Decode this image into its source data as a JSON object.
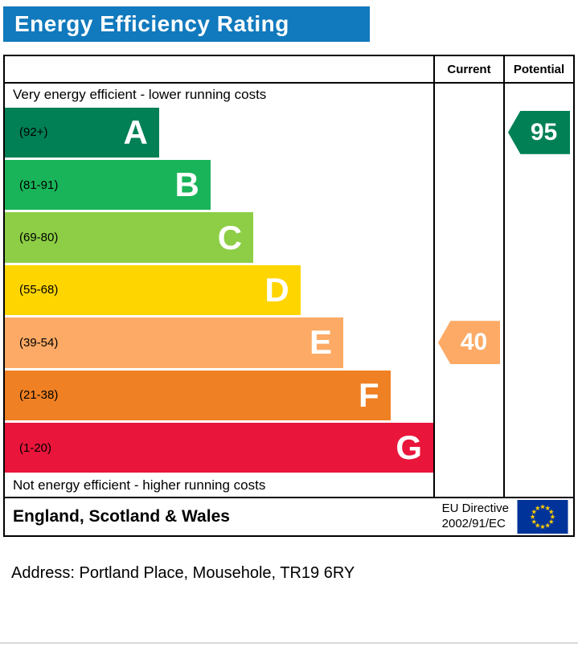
{
  "header": {
    "title": "Energy Efficiency Rating"
  },
  "colors": {
    "title_bg": "#1179bd",
    "border": "#000000",
    "flag_bg": "#003399",
    "flag_star": "#ffcc00"
  },
  "table": {
    "columns": {
      "current": "Current",
      "potential": "Potential"
    },
    "captions": {
      "top": "Very energy efficient - lower running costs",
      "bottom": "Not energy efficient - higher running costs"
    },
    "bands": [
      {
        "letter": "A",
        "range": "(92+)",
        "color": "#008054",
        "width_pct": 36
      },
      {
        "letter": "B",
        "range": "(81-91)",
        "color": "#19b459",
        "width_pct": 48
      },
      {
        "letter": "C",
        "range": "(69-80)",
        "color": "#8dce46",
        "width_pct": 58
      },
      {
        "letter": "D",
        "range": "(55-68)",
        "color": "#ffd500",
        "width_pct": 69
      },
      {
        "letter": "E",
        "range": "(39-54)",
        "color": "#fcaa65",
        "width_pct": 79
      },
      {
        "letter": "F",
        "range": "(21-38)",
        "color": "#ef8023",
        "width_pct": 90
      },
      {
        "letter": "G",
        "range": "(1-20)",
        "color": "#e9153b",
        "width_pct": 100
      }
    ],
    "current": {
      "value": "40",
      "band": "E",
      "band_row": 4,
      "color": "#fcaa65"
    },
    "potential": {
      "value": "95",
      "band": "A",
      "band_row": 0,
      "color": "#008054"
    }
  },
  "footer": {
    "region": "England, Scotland & Wales",
    "directive": [
      "EU Directive",
      "2002/91/EC"
    ]
  },
  "address": "Address: Portland Place, Mousehole, TR19 6RY",
  "chart_data": {
    "type": "bar",
    "title": "Energy Efficiency Rating",
    "categories": [
      "A (92+)",
      "B (81-91)",
      "C (69-80)",
      "D (55-68)",
      "E (39-54)",
      "F (21-38)",
      "G (1-20)"
    ],
    "values": [
      36,
      48,
      58,
      69,
      79,
      90,
      100
    ],
    "band_colors": [
      "#008054",
      "#19b459",
      "#8dce46",
      "#ffd500",
      "#fcaa65",
      "#ef8023",
      "#e9153b"
    ],
    "current_rating": 40,
    "current_band": "E",
    "potential_rating": 95,
    "potential_band": "A",
    "annotations": [
      "Very energy efficient - lower running costs",
      "Not energy efficient - higher running costs"
    ],
    "columns": [
      "Current",
      "Potential"
    ],
    "footer_region": "England, Scotland & Wales",
    "footer_directive": "EU Directive 2002/91/EC"
  }
}
